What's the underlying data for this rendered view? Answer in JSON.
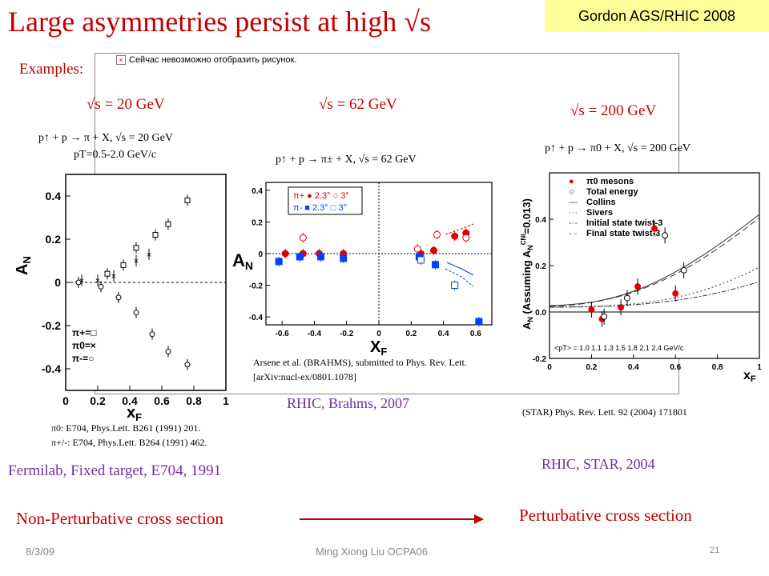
{
  "slide": {
    "title": "Large asymmetries persist at high √s",
    "tag": "Gordon AGS/RHIC 2008",
    "examples_label": "Examples:",
    "image_placeholder": "Сейчас невозможно отобразить рисунок.",
    "footer_date": "8/3/09",
    "footer_author": "Ming Xiong Liu  OCPA06",
    "page_number": "21"
  },
  "panels": {
    "e704": {
      "energy": "√s = 20 GeV",
      "reaction": "p↑ + p → π + X, √s = 20 GeV",
      "pt_range": "pT=0.5-2.0 GeV/c",
      "ref1": "π0: E704, Phys.Lett. B261 (1991) 201.",
      "ref2": "π+/-: E704, Phys.Lett. B264 (1991) 462.",
      "caption": "Fermilab, Fixed target, E704, 1991"
    },
    "brahms": {
      "energy": "√s = 62 GeV",
      "reaction": "p↑ + p → π± + X, √s = 62 GeV",
      "reference": "Arsene et al. (BRAHMS), submitted to Phys. Rev. Lett. [arXiv:nucl-ex/0801.1078]",
      "caption": "RHIC, Brahms, 2007"
    },
    "star": {
      "energy": "√s = 200 GeV",
      "reaction": "p↑ + p → π0 + X, √s = 200 GeV",
      "reference": "(STAR) Phys. Rev. Lett. 92 (2004) 171801",
      "caption": "RHIC, STAR, 2004"
    }
  },
  "bottom": {
    "left": "Non-Perturbative cross section",
    "right": "Perturbative cross section"
  },
  "chart_data": [
    {
      "type": "scatter",
      "xlabel": "xF",
      "ylabel": "AN",
      "xlim": [
        0,
        1.0
      ],
      "ylim": [
        -0.5,
        0.5
      ],
      "xticks": [
        "0",
        "0.2",
        "0.4",
        "0.6",
        "0.8",
        "1"
      ],
      "yticks": [
        "-0.4",
        "-0.2",
        "0",
        "0.2",
        "0.4"
      ],
      "legend": [
        "π+=□",
        "π0=×",
        "π-=○"
      ],
      "series": [
        {
          "name": "π+",
          "x": [
            0.26,
            0.36,
            0.44,
            0.56,
            0.64,
            0.76
          ],
          "y": [
            0.04,
            0.08,
            0.16,
            0.22,
            0.27,
            0.38
          ]
        },
        {
          "name": "π0",
          "x": [
            0.1,
            0.2,
            0.3,
            0.44,
            0.52
          ],
          "y": [
            0.01,
            0.01,
            0.03,
            0.1,
            0.13
          ]
        },
        {
          "name": "π-",
          "x": [
            0.08,
            0.22,
            0.33,
            0.44,
            0.54,
            0.64,
            0.76
          ],
          "y": [
            0.0,
            -0.02,
            -0.07,
            -0.14,
            -0.24,
            -0.32,
            -0.38
          ]
        }
      ]
    },
    {
      "type": "scatter",
      "xlabel": "XF",
      "ylabel": "AN",
      "xlim": [
        -0.7,
        0.7
      ],
      "ylim": [
        -0.45,
        0.45
      ],
      "xticks": [
        "-0.6",
        "-0.4",
        "-0.2",
        "0",
        "0.2",
        "0.4",
        "0.6"
      ],
      "yticks": [
        "-0.4",
        "-0.2",
        "0",
        "0.2",
        "0.4"
      ],
      "legend": [
        "π+ ● 2.3° ○ 3°",
        "π- ■ 2.3° □ 3°"
      ],
      "series": [
        {
          "name": "π+ 2.3°",
          "x": [
            -0.58,
            -0.47,
            -0.37,
            -0.22,
            0.26,
            0.34,
            0.47,
            0.54
          ],
          "y": [
            0.0,
            0.0,
            0.0,
            0.0,
            0.0,
            0.02,
            0.11,
            0.13
          ]
        },
        {
          "name": "π+ 3°",
          "x": [
            -0.47,
            0.24,
            0.36,
            0.54
          ],
          "y": [
            0.1,
            0.03,
            0.12,
            0.1
          ]
        },
        {
          "name": "π- 2.3°",
          "x": [
            -0.62,
            -0.49,
            -0.36,
            -0.22,
            0.25,
            0.35,
            0.62
          ],
          "y": [
            -0.05,
            -0.02,
            -0.02,
            -0.03,
            -0.02,
            -0.07,
            -0.43
          ]
        },
        {
          "name": "π- 3°",
          "x": [
            0.26,
            0.47
          ],
          "y": [
            -0.04,
            -0.2
          ]
        }
      ]
    },
    {
      "type": "scatter",
      "xlabel": "xF",
      "ylabel": "AN (Assuming A_N^CNI=0.013)",
      "xlim": [
        0,
        1.0
      ],
      "ylim": [
        -0.2,
        0.6
      ],
      "xticks": [
        "0",
        "0.2",
        "0.4",
        "0.6",
        "0.8",
        "1"
      ],
      "yticks": [
        "-0.2",
        "0.0",
        "0.2",
        "0.4"
      ],
      "legend": [
        "π0 mesons",
        "Total energy",
        "Collins",
        "Sivers",
        "Initial state twist-3",
        "Final state twist-3"
      ],
      "pt_label": "<pT> = 1.0  1.1  1.3  1.5  1.8  2.1  2.4  GeV/c",
      "series": [
        {
          "name": "π0 mesons",
          "x": [
            0.2,
            0.25,
            0.34,
            0.42,
            0.5,
            0.6
          ],
          "y": [
            0.01,
            -0.03,
            0.02,
            0.11,
            0.36,
            0.08
          ]
        },
        {
          "name": "Total energy",
          "x": [
            0.26,
            0.37,
            0.55,
            0.64
          ],
          "y": [
            -0.02,
            0.06,
            0.33,
            0.18
          ]
        }
      ]
    }
  ]
}
